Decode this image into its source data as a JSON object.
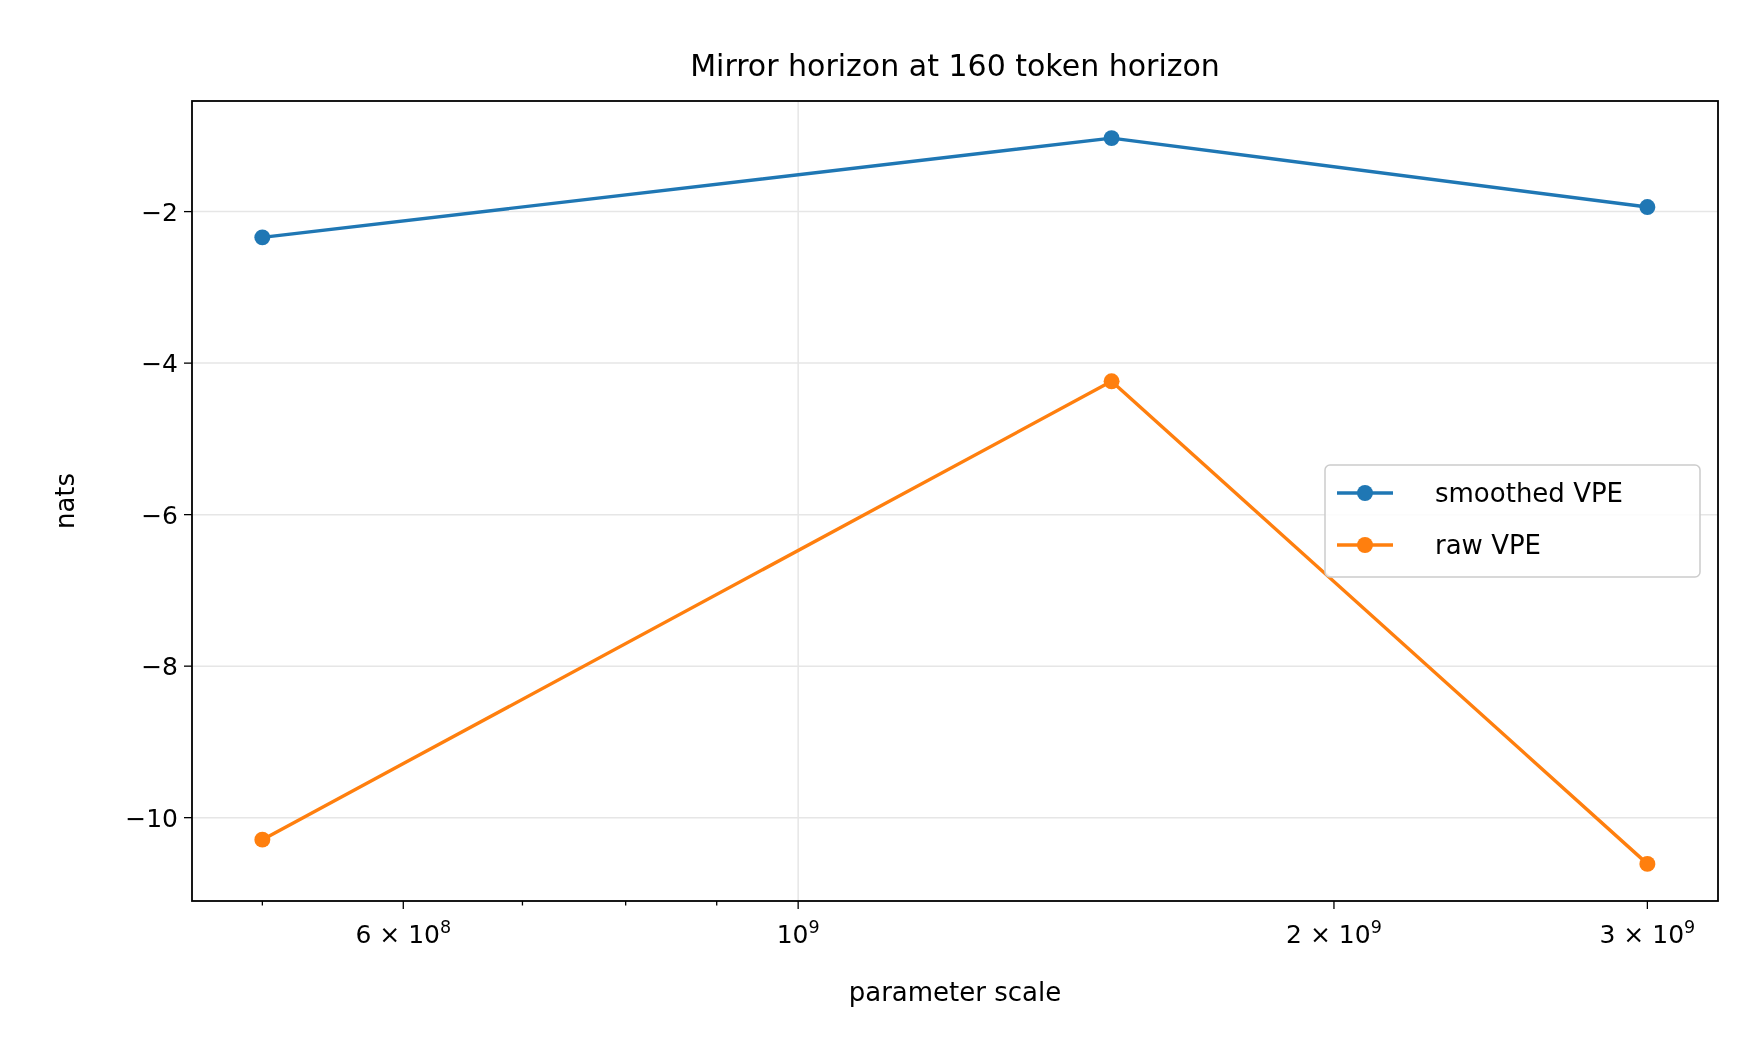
{
  "chart_data": {
    "type": "line",
    "title": "Mirror horizon at 160 token horizon",
    "xlabel": "parameter scale",
    "ylabel": "nats",
    "x": [
      500000000,
      1500000000,
      3000000000
    ],
    "series": [
      {
        "name": "smoothed VPE",
        "color": "#1f77b4",
        "values": [
          -2.34,
          -1.03,
          -1.94
        ]
      },
      {
        "name": "raw VPE",
        "color": "#ff7f0e",
        "values": [
          -10.29,
          -4.24,
          -10.61
        ]
      }
    ],
    "log": "x",
    "xlim": [
      456500000,
      3287000000
    ],
    "ylim": [
      -11.1,
      -0.54
    ],
    "xticks": [
      {
        "value": 500000000,
        "label": null
      },
      {
        "value": 600000000,
        "label": "6 × 10$^{8}$"
      },
      {
        "value": 700000000,
        "label": null
      },
      {
        "value": 800000000,
        "label": null
      },
      {
        "value": 900000000,
        "label": null
      },
      {
        "value": 1000000000,
        "label": "10$^{9}$"
      },
      {
        "value": 2000000000,
        "label": "2 × 10$^{9}$"
      },
      {
        "value": 3000000000,
        "label": "3 × 10$^{9}$"
      }
    ],
    "yticks": [
      {
        "value": -2,
        "label": "−2"
      },
      {
        "value": -4,
        "label": "−4"
      },
      {
        "value": -6,
        "label": "−6"
      },
      {
        "value": -8,
        "label": "−8"
      },
      {
        "value": -10,
        "label": "−10"
      }
    ],
    "grid": true,
    "legend": "right",
    "marker": "circle",
    "line_style": "solid"
  }
}
